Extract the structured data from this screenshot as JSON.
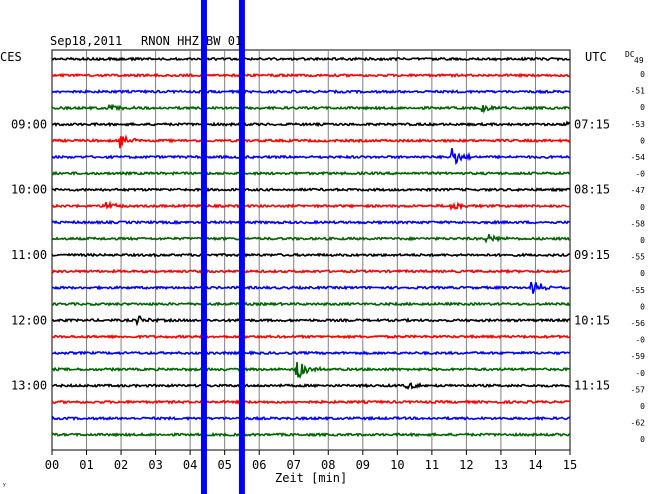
{
  "header": {
    "date": "Sep18,2011",
    "station": "RNON HHZ BW 01",
    "left_zone": "CES",
    "right_zone": "UTC",
    "dc_header": "DC",
    "dc_header_value": "49"
  },
  "footer": {
    "xlabel": "Zeit [min]",
    "corner_mark": "ʸ"
  },
  "chart_data": {
    "type": "line",
    "title": "Sep18,2011   RNON HHZ BW 01",
    "xlabel": "Zeit [min]",
    "xlim": [
      0,
      15
    ],
    "x_ticks": [
      "00",
      "01",
      "02",
      "03",
      "04",
      "05",
      "06",
      "07",
      "08",
      "09",
      "10",
      "11",
      "12",
      "13",
      "14",
      "15"
    ],
    "trace_count": 24,
    "trace_colors": [
      "#000000",
      "#ff0000",
      "#0000ff",
      "#006400"
    ],
    "left_time_labels": [
      {
        "trace": 4,
        "label": "09:00"
      },
      {
        "trace": 8,
        "label": "10:00"
      },
      {
        "trace": 12,
        "label": "11:00"
      },
      {
        "trace": 16,
        "label": "12:00"
      },
      {
        "trace": 20,
        "label": "13:00"
      }
    ],
    "right_time_labels": [
      {
        "trace": 4,
        "label": "07:15"
      },
      {
        "trace": 8,
        "label": "08:15"
      },
      {
        "trace": 12,
        "label": "09:15"
      },
      {
        "trace": 16,
        "label": "10:15"
      },
      {
        "trace": 20,
        "label": "11:15"
      }
    ],
    "dc_offsets": [
      "0",
      "-51",
      "0",
      "-53",
      "0",
      "-54",
      "-0",
      "-47",
      "0",
      "-58",
      "0",
      "-55",
      "0",
      "-55",
      "0",
      "-56",
      "-0",
      "-59",
      "-0",
      "-57",
      "0",
      "-62",
      "0"
    ],
    "vertical_markers_min": [
      4.4,
      5.5
    ],
    "events": [
      {
        "trace": 5,
        "minute": 2.0,
        "amp": 0.5
      },
      {
        "trace": 6,
        "minute": 11.6,
        "amp": 0.6
      },
      {
        "trace": 9,
        "minute": 1.6,
        "amp": 0.3
      },
      {
        "trace": 9,
        "minute": 11.6,
        "amp": 0.3
      },
      {
        "trace": 14,
        "minute": 13.9,
        "amp": 0.6
      },
      {
        "trace": 16,
        "minute": 2.5,
        "amp": 0.25
      },
      {
        "trace": 19,
        "minute": 7.1,
        "amp": 0.7
      },
      {
        "trace": 20,
        "minute": 10.3,
        "amp": 0.25
      },
      {
        "trace": 3,
        "minute": 1.7,
        "amp": 0.25
      },
      {
        "trace": 3,
        "minute": 12.5,
        "amp": 0.25
      },
      {
        "trace": 11,
        "minute": 12.6,
        "amp": 0.3
      },
      {
        "trace": 4,
        "minute": 14.9,
        "amp": 0.3
      }
    ],
    "grid": true
  }
}
